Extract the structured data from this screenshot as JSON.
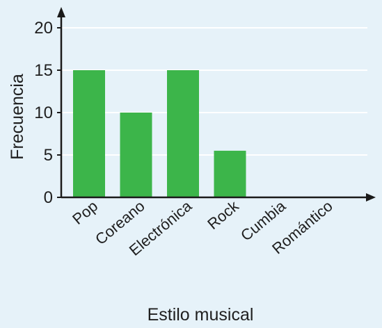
{
  "chart_data": {
    "type": "bar",
    "categories": [
      "Pop",
      "Coreano",
      "Electrónica",
      "Rock",
      "Cumbia",
      "Romántico"
    ],
    "values": [
      15,
      10,
      15,
      5.5,
      0,
      0
    ],
    "xlabel": "Estilo musical",
    "ylabel": "Frecuencia",
    "ylim": [
      0,
      20
    ],
    "yticks": [
      0,
      5,
      10,
      15,
      20
    ],
    "grid": true,
    "bar_color": "#3cb54a",
    "grid_color": "#ffffff",
    "background_color": "#e6f2f9"
  }
}
